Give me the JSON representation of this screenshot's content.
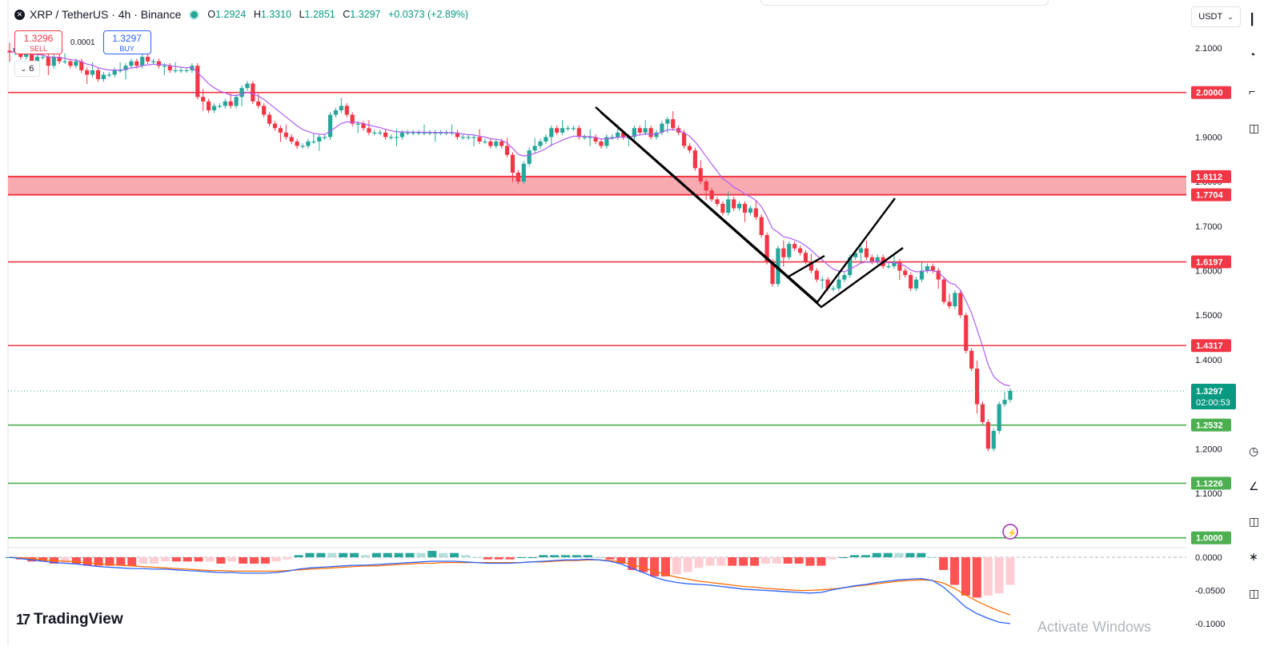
{
  "header": {
    "symbol": "XRP / TetherUS · 4h · Binance",
    "open_label": "O",
    "open": "1.2924",
    "high_label": "H",
    "high": "1.3310",
    "low_label": "L",
    "low": "1.2851",
    "close_label": "C",
    "close": "1.3297",
    "change": "+0.0373 (+2.89%)"
  },
  "trade": {
    "sell_price": "1.3296",
    "sell_label": "SELL",
    "spread": "0.0001",
    "buy_price": "1.3297",
    "buy_label": "BUY"
  },
  "indicators_collapsed_count": "6",
  "currency_selector": "USDT",
  "brand": "TradingView",
  "watermark": "Activate Windows",
  "colors": {
    "bull": "#26a69a",
    "bear": "#f23645",
    "resistance": "#f23645",
    "support": "#4caf50",
    "zone_fill": "#f7a1a9",
    "ema": "#b15cf0",
    "macd": "#2962ff",
    "signal": "#ff6d00"
  },
  "chart_data": {
    "type": "candlestick",
    "symbol": "XRP / TetherUS",
    "interval": "4h",
    "exchange": "Binance",
    "price_axis_ticks": [
      "2.1000",
      "1.9000",
      "1.8000",
      "1.7000",
      "1.6000",
      "1.5000",
      "1.4000",
      "1.2000",
      "1.1000"
    ],
    "price_range": [
      0.98,
      2.15
    ],
    "current_price": "1.3297",
    "countdown": "02:00:53",
    "horizontal_levels": [
      {
        "value": 2.0,
        "label": "2.0000",
        "kind": "resistance"
      },
      {
        "value": 1.6197,
        "label": "1.6197",
        "kind": "resistance"
      },
      {
        "value": 1.4317,
        "label": "1.4317",
        "kind": "resistance"
      },
      {
        "value": 1.2532,
        "label": "1.2532",
        "kind": "support"
      },
      {
        "value": 1.1226,
        "label": "1.1226",
        "kind": "support"
      },
      {
        "value": 1.0,
        "label": "1.0000",
        "kind": "support"
      }
    ],
    "zone": {
      "top": 1.8112,
      "bottom": 1.7704,
      "top_label": "1.8112",
      "bottom_label": "1.7704"
    },
    "closes": [
      2.09,
      2.1,
      2.08,
      2.09,
      2.07,
      2.08,
      2.08,
      2.06,
      2.08,
      2.07,
      2.07,
      2.06,
      2.07,
      2.05,
      2.04,
      2.05,
      2.03,
      2.04,
      2.04,
      2.05,
      2.05,
      2.06,
      2.07,
      2.06,
      2.08,
      2.07,
      2.07,
      2.06,
      2.06,
      2.05,
      2.05,
      2.05,
      2.05,
      2.06,
      1.99,
      1.98,
      1.96,
      1.97,
      1.97,
      1.98,
      1.97,
      1.99,
      2.01,
      2.02,
      1.98,
      1.97,
      1.95,
      1.93,
      1.92,
      1.91,
      1.9,
      1.89,
      1.88,
      1.88,
      1.89,
      1.89,
      1.9,
      1.9,
      1.95,
      1.96,
      1.97,
      1.95,
      1.93,
      1.93,
      1.92,
      1.91,
      1.91,
      1.91,
      1.9,
      1.9,
      1.9,
      1.91,
      1.91,
      1.91,
      1.91,
      1.91,
      1.91,
      1.91,
      1.91,
      1.91,
      1.91,
      1.9,
      1.9,
      1.9,
      1.9,
      1.89,
      1.89,
      1.88,
      1.89,
      1.88,
      1.86,
      1.82,
      1.8,
      1.84,
      1.87,
      1.88,
      1.89,
      1.9,
      1.92,
      1.91,
      1.92,
      1.92,
      1.92,
      1.9,
      1.9,
      1.9,
      1.89,
      1.88,
      1.9,
      1.9,
      1.91,
      1.9,
      1.9,
      1.92,
      1.91,
      1.92,
      1.9,
      1.91,
      1.93,
      1.94,
      1.92,
      1.91,
      1.88,
      1.87,
      1.83,
      1.8,
      1.78,
      1.76,
      1.75,
      1.73,
      1.76,
      1.74,
      1.75,
      1.73,
      1.74,
      1.72,
      1.68,
      1.62,
      1.57,
      1.65,
      1.63,
      1.66,
      1.65,
      1.64,
      1.62,
      1.6,
      1.58,
      1.58,
      1.56,
      1.56,
      1.58,
      1.59,
      1.63,
      1.64,
      1.65,
      1.63,
      1.62,
      1.63,
      1.61,
      1.61,
      1.62,
      1.6,
      1.59,
      1.56,
      1.58,
      1.6,
      1.61,
      1.6,
      1.58,
      1.53,
      1.52,
      1.55,
      1.5,
      1.42,
      1.38,
      1.3,
      1.26,
      1.2,
      1.24,
      1.3,
      1.31,
      1.33
    ],
    "ema": {
      "name": "EMA",
      "visible": true
    },
    "macd": {
      "axis_ticks": [
        "0.0000",
        "-0.0500",
        "-0.1000"
      ],
      "range": [
        -0.105,
        0.015
      ],
      "macd": [
        -0.0,
        -0.002,
        -0.004,
        -0.006,
        -0.008,
        -0.009,
        -0.01,
        -0.012,
        -0.014,
        -0.015,
        -0.016,
        -0.017,
        -0.017,
        -0.018,
        -0.018,
        -0.019,
        -0.02,
        -0.021,
        -0.022,
        -0.023,
        -0.023,
        -0.024,
        -0.024,
        -0.024,
        -0.023,
        -0.021,
        -0.018,
        -0.016,
        -0.015,
        -0.014,
        -0.013,
        -0.012,
        -0.012,
        -0.011,
        -0.01,
        -0.009,
        -0.008,
        -0.007,
        -0.006,
        -0.006,
        -0.006,
        -0.007,
        -0.008,
        -0.009,
        -0.009,
        -0.009,
        -0.008,
        -0.007,
        -0.006,
        -0.005,
        -0.004,
        -0.004,
        -0.003,
        -0.004,
        -0.006,
        -0.01,
        -0.017,
        -0.023,
        -0.03,
        -0.035,
        -0.038,
        -0.04,
        -0.041,
        -0.042,
        -0.044,
        -0.046,
        -0.048,
        -0.049,
        -0.05,
        -0.051,
        -0.052,
        -0.053,
        -0.054,
        -0.053,
        -0.049,
        -0.046,
        -0.043,
        -0.041,
        -0.038,
        -0.036,
        -0.034,
        -0.033,
        -0.032,
        -0.035,
        -0.045,
        -0.06,
        -0.075,
        -0.085,
        -0.092,
        -0.098,
        -0.1
      ],
      "signal": [
        -0.0,
        -0.001,
        -0.002,
        -0.004,
        -0.005,
        -0.006,
        -0.007,
        -0.008,
        -0.01,
        -0.011,
        -0.012,
        -0.013,
        -0.014,
        -0.015,
        -0.016,
        -0.017,
        -0.018,
        -0.019,
        -0.02,
        -0.02,
        -0.021,
        -0.021,
        -0.021,
        -0.021,
        -0.021,
        -0.02,
        -0.019,
        -0.018,
        -0.017,
        -0.016,
        -0.015,
        -0.014,
        -0.013,
        -0.013,
        -0.012,
        -0.011,
        -0.01,
        -0.009,
        -0.009,
        -0.008,
        -0.008,
        -0.008,
        -0.008,
        -0.008,
        -0.008,
        -0.008,
        -0.008,
        -0.007,
        -0.007,
        -0.006,
        -0.005,
        -0.005,
        -0.004,
        -0.004,
        -0.005,
        -0.007,
        -0.011,
        -0.016,
        -0.021,
        -0.026,
        -0.03,
        -0.033,
        -0.036,
        -0.038,
        -0.04,
        -0.042,
        -0.044,
        -0.045,
        -0.047,
        -0.048,
        -0.049,
        -0.05,
        -0.05,
        -0.049,
        -0.048,
        -0.046,
        -0.044,
        -0.042,
        -0.04,
        -0.038,
        -0.036,
        -0.035,
        -0.034,
        -0.035,
        -0.039,
        -0.047,
        -0.057,
        -0.066,
        -0.074,
        -0.081,
        -0.087
      ]
    }
  }
}
